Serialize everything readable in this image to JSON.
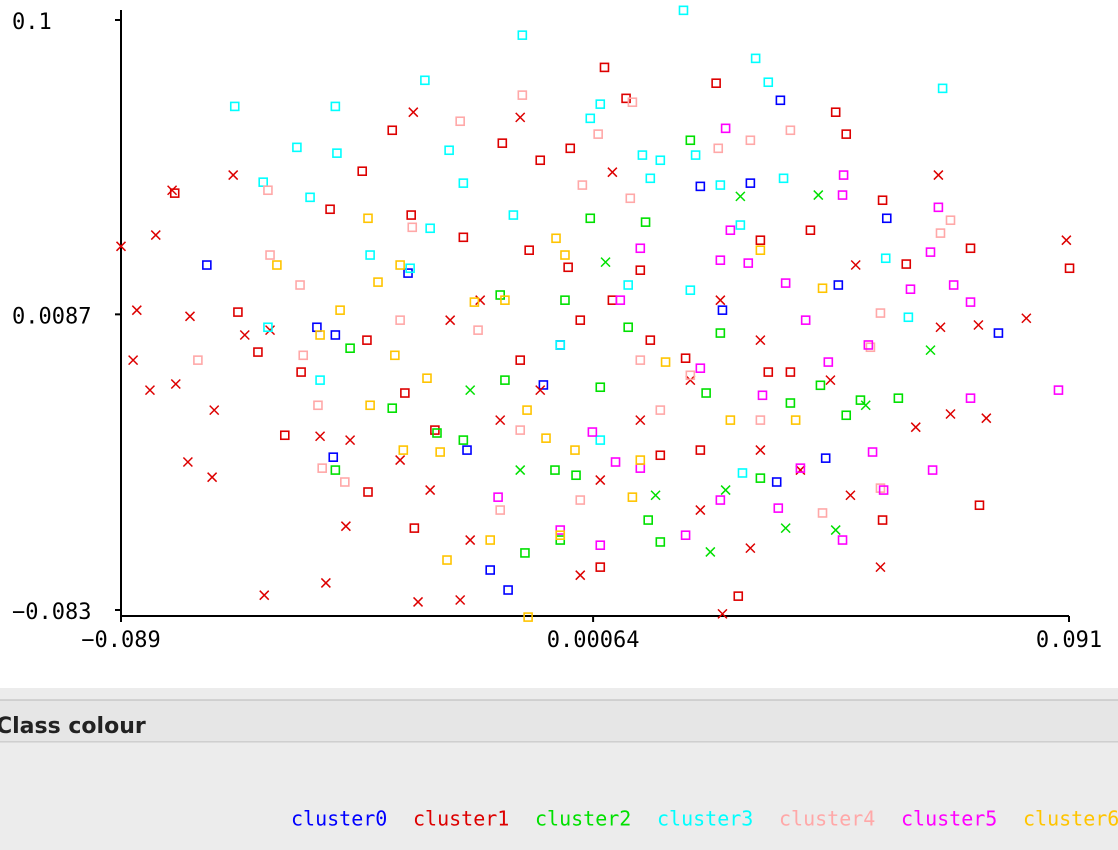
{
  "chart_data": {
    "type": "scatter",
    "xlim": [
      -0.089,
      0.091
    ],
    "ylim": [
      -0.083,
      0.1
    ],
    "xticks": [
      {
        "value": -0.089,
        "label": "−0.089"
      },
      0.00064,
      0.091
    ],
    "yticks": [
      {
        "value": -0.083,
        "label": "−0.083"
      },
      0.0087,
      0.1
    ],
    "legend_title": "Class colour",
    "series": [
      {
        "name": "cluster0",
        "color": "#0000ff",
        "marker": "square",
        "x": [
          -0.0727,
          -0.0345,
          -0.0518,
          -0.0483,
          -0.0056,
          -0.0487,
          -0.0189,
          -0.0155,
          0.0362,
          0.0564,
          0.0776,
          0.0472,
          0.0252,
          0.021,
          0.0305,
          0.0448,
          0.0355,
          -0.0088,
          -0.0233
        ],
        "y": [
          0.024,
          0.0215,
          0.0047,
          0.0023,
          -0.0008,
          -0.0356,
          -0.0706,
          -0.0768,
          0.0751,
          0.0385,
          0.0029,
          0.0178,
          0.01,
          0.0484,
          0.0494,
          -0.0359,
          -0.0433,
          -0.0132,
          -0.0334
        ]
      },
      {
        "name": "cluster1",
        "color": "#dd0000",
        "x": [
          0.0028,
          0.024,
          -0.0375,
          -0.0166,
          -0.0094,
          0.0487,
          0.0467,
          -0.0432,
          -0.0493,
          -0.0339,
          -0.024,
          -0.0668,
          -0.063,
          -0.0548,
          -0.0423,
          -0.0351,
          -0.0294,
          -0.0041,
          0.0043,
          0.0115,
          0.0182,
          0.0339,
          0.0381,
          0.0556,
          0.0723,
          0.0911,
          0.074,
          0.0556,
          0.0282,
          0.002,
          -0.0333,
          -0.0421,
          -0.0579,
          -0.0115,
          0.0096,
          0.021,
          0.0134,
          -0.0018,
          -0.0132,
          0.0324,
          0.0419,
          0.0601,
          -0.0788,
          -0.0037,
          0.0069,
          -0.089,
          -0.0824,
          -0.0677,
          -0.0793,
          -0.086,
          -0.0759,
          -0.0867,
          -0.0835,
          -0.0786,
          -0.0713,
          -0.0763,
          -0.0717,
          -0.0618,
          -0.0501,
          -0.0463,
          -0.0326,
          -0.0246,
          -0.0018,
          0.0252,
          0.0305,
          0.0552,
          0.0662,
          0.0905,
          0.0829,
          0.0738,
          0.0753,
          0.0685,
          0.0619,
          0.0495,
          0.04,
          -0.0335,
          -0.0132,
          0.0043,
          -0.0265,
          -0.0208,
          -0.017,
          -0.0094,
          0.002,
          0.0096,
          0.0191,
          0.0248,
          0.0324,
          0.0457,
          0.0505,
          0.0666,
          -0.0512,
          -0.0455,
          -0.0607,
          -0.0655,
          -0.0303,
          -0.0227,
          -0.036,
          0.021,
          0.0324
        ],
        "y": [
          0.0853,
          0.0804,
          0.0658,
          0.0618,
          0.0565,
          0.0646,
          0.0714,
          0.0531,
          0.0413,
          0.0395,
          0.0326,
          0.0094,
          -0.003,
          -0.0092,
          0.0007,
          -0.0157,
          -0.0272,
          0.0233,
          0.0131,
          0.0007,
          -0.0049,
          -0.0092,
          -0.0092,
          0.0441,
          0.0292,
          0.023,
          -0.0505,
          -0.0551,
          -0.0787,
          -0.0697,
          -0.0576,
          -0.0464,
          -0.0288,
          0.0286,
          0.0224,
          -0.0334,
          -0.035,
          0.0069,
          -0.0055,
          0.0317,
          0.0348,
          0.0243,
          0.0463,
          0.0602,
          0.0757,
          0.0298,
          0.0333,
          0.0519,
          0.0472,
          0.01,
          0.0081,
          -0.0055,
          -0.0148,
          -0.0129,
          -0.021,
          -0.0371,
          -0.0418,
          -0.0784,
          -0.0746,
          -0.057,
          -0.0805,
          -0.0799,
          -0.0722,
          -0.0842,
          -0.0638,
          -0.0697,
          0.0519,
          0.0317,
          0.0075,
          0.0054,
          -0.0235,
          -0.0222,
          -0.0263,
          -0.0474,
          -0.0396,
          0.0714,
          0.0698,
          0.0528,
          0.0069,
          0.0131,
          -0.0241,
          -0.0148,
          -0.0427,
          -0.0241,
          -0.0117,
          0.0131,
          0.0007,
          -0.0117,
          0.024,
          0.0047,
          -0.0291,
          -0.0303,
          0.0038,
          0.0023,
          -0.0458,
          -0.0613,
          -0.0365,
          -0.052,
          -0.0334
        ],
        "markers": [
          "square",
          "square",
          "square",
          "square",
          "square",
          "square",
          "square",
          "square",
          "square",
          "square",
          "square",
          "square",
          "square",
          "square",
          "square",
          "square",
          "square",
          "square",
          "square",
          "square",
          "square",
          "square",
          "square",
          "square",
          "square",
          "square",
          "square",
          "square",
          "square",
          "square",
          "square",
          "square",
          "square",
          "square",
          "square",
          "square",
          "square",
          "square",
          "square",
          "square",
          "square",
          "square",
          "square",
          "square",
          "square",
          "cross",
          "cross",
          "cross",
          "cross",
          "cross",
          "cross",
          "cross",
          "cross",
          "cross",
          "cross",
          "cross",
          "cross",
          "cross",
          "cross",
          "cross",
          "cross",
          "cross",
          "cross",
          "cross",
          "cross",
          "cross",
          "cross",
          "cross",
          "cross",
          "cross",
          "cross",
          "cross",
          "cross",
          "cross",
          "cross",
          "cross",
          "cross",
          "cross",
          "cross",
          "cross",
          "cross",
          "cross",
          "cross",
          "cross",
          "cross",
          "cross",
          "cross",
          "cross",
          "cross",
          "cross",
          "cross",
          "cross",
          "cross",
          "cross",
          "cross",
          "cross",
          "cross",
          "cross",
          "cross"
        ]
      },
      {
        "name": "cluster2",
        "color": "#00e000",
        "x": [
          0.0191,
          0.0106,
          0.0001,
          -0.017,
          -0.0455,
          -0.0483,
          -0.029,
          -0.024,
          -0.0066,
          -0.0026,
          -0.0123,
          -0.0056,
          0.0111,
          0.0134,
          0.002,
          0.0221,
          0.0324,
          0.0438,
          0.0586,
          0.0514,
          0.0487,
          0.0381,
          0.0248,
          0.0073,
          -0.0161,
          -0.0375,
          -0.0047,
          0.0434,
          0.0286,
          0.003,
          0.0229,
          0.0372,
          0.0467,
          0.0647,
          0.0125,
          0.0258,
          -0.0227,
          -0.0132,
          0.0524
        ],
        "y": [
          0.0627,
          0.0373,
          0.0385,
          0.0147,
          -0.0018,
          -0.0396,
          -0.0281,
          -0.0303,
          -0.0396,
          -0.0412,
          -0.0653,
          -0.0613,
          -0.0551,
          -0.0619,
          -0.0139,
          -0.0157,
          -0.0421,
          -0.0133,
          -0.0173,
          -0.0179,
          -0.0226,
          -0.0188,
          0.0029,
          0.0047,
          -0.0117,
          -0.0204,
          0.0131,
          0.0457,
          0.0453,
          0.0249,
          -0.065,
          -0.0576,
          -0.0582,
          -0.0024,
          -0.0474,
          -0.0458,
          -0.0148,
          -0.0396,
          -0.0195
        ],
        "markers": [
          "square",
          "square",
          "square",
          "square",
          "square",
          "square",
          "square",
          "square",
          "square",
          "square",
          "square",
          "square",
          "square",
          "square",
          "square",
          "square",
          "square",
          "square",
          "square",
          "square",
          "square",
          "square",
          "square",
          "square",
          "square",
          "square",
          "square",
          "cross",
          "cross",
          "cross",
          "cross",
          "cross",
          "cross",
          "cross",
          "cross",
          "cross",
          "cross",
          "cross",
          "cross"
        ]
      },
      {
        "name": "cluster3",
        "color": "#00ffff",
        "marker": "square",
        "x": [
          0.0178,
          -0.0128,
          -0.0313,
          -0.0674,
          -0.0483,
          -0.0556,
          -0.048,
          -0.062,
          -0.0531,
          0.0315,
          0.0339,
          0.067,
          -0.0267,
          0.0001,
          0.002,
          0.01,
          0.0134,
          0.0201,
          0.0368,
          0.0248,
          0.0115,
          -0.0145,
          -0.024,
          -0.0303,
          -0.0341,
          -0.0417,
          -0.0611,
          -0.0512,
          0.0605,
          0.0562,
          0.029,
          0.002,
          -0.0056,
          0.0191,
          0.0073,
          0.0286
        ],
        "y": [
          0.103,
          0.0953,
          0.0813,
          0.0732,
          0.0732,
          0.0605,
          0.0587,
          0.0497,
          0.045,
          0.0881,
          0.0807,
          0.0788,
          0.0596,
          0.0695,
          0.0739,
          0.0581,
          0.0565,
          0.0581,
          0.0509,
          0.0488,
          0.0509,
          0.0395,
          0.0494,
          0.0354,
          0.023,
          0.0271,
          0.0047,
          -0.0117,
          0.0078,
          0.0261,
          -0.0405,
          -0.0303,
          -0.0008,
          0.0162,
          0.0178,
          0.0364
        ]
      },
      {
        "name": "cluster4",
        "color": "#ffa8a8",
        "marker": "square",
        "x": [
          -0.0128,
          -0.0246,
          0.0016,
          0.0081,
          -0.0611,
          -0.0607,
          -0.055,
          -0.0744,
          -0.0544,
          -0.0516,
          -0.0465,
          -0.0508,
          -0.0014,
          0.0077,
          0.0244,
          0.0305,
          0.0381,
          0.0685,
          0.0666,
          0.0552,
          0.0533,
          0.0552,
          0.0442,
          0.0096,
          0.0191,
          -0.0212,
          -0.036,
          -0.0132,
          0.0134,
          0.0324,
          -0.0018,
          -0.017,
          -0.0337
        ],
        "y": [
          0.0767,
          0.0686,
          0.0646,
          0.0745,
          0.0472,
          0.0271,
          0.0178,
          -0.0055,
          -0.004,
          -0.0195,
          -0.0433,
          -0.039,
          0.0488,
          0.0447,
          0.0602,
          0.0627,
          0.0658,
          0.0379,
          0.0339,
          0.0091,
          -0.0015,
          -0.0452,
          -0.0529,
          -0.0055,
          -0.0102,
          0.0038,
          0.0069,
          -0.0272,
          -0.021,
          -0.0241,
          -0.0489,
          -0.052,
          0.0357
        ]
      },
      {
        "name": "cluster5",
        "color": "#ff00ff",
        "marker": "square",
        "x": [
          0.0258,
          0.0482,
          0.048,
          0.0662,
          0.0647,
          0.0691,
          0.0723,
          0.0609,
          0.089,
          0.0723,
          0.0651,
          0.0558,
          0.048,
          0.0537,
          0.0529,
          0.0453,
          0.04,
          0.0358,
          0.0267,
          0.0248,
          0.0301,
          0.0372,
          0.041,
          0.0096,
          0.0058,
          0.021,
          0.0328,
          0.0005,
          0.0049,
          0.0096,
          -0.0056,
          0.002,
          -0.0174,
          0.0182,
          0.0248
        ],
        "y": [
          0.0664,
          0.0519,
          0.0457,
          0.0419,
          0.028,
          0.0178,
          0.0125,
          0.0165,
          -0.0148,
          -0.0173,
          -0.0396,
          -0.0458,
          -0.0613,
          -0.034,
          -0.0008,
          -0.0061,
          -0.039,
          -0.0514,
          0.0348,
          0.0255,
          0.0246,
          0.0184,
          0.0069,
          0.0292,
          0.0131,
          -0.008,
          -0.0164,
          -0.0278,
          -0.0371,
          -0.039,
          -0.0582,
          -0.0629,
          -0.048,
          -0.0598,
          -0.0489
        ]
      },
      {
        "name": "cluster6",
        "color": "#ffc400",
        "marker": "square",
        "x": [
          -0.0594,
          -0.0421,
          -0.036,
          -0.0402,
          -0.0474,
          -0.0512,
          -0.037,
          -0.0309,
          -0.0417,
          -0.0354,
          -0.0284,
          -0.0189,
          -0.0271,
          -0.0117,
          -0.0056,
          0.0081,
          -0.0083,
          -0.0119,
          -0.0219,
          -0.0161,
          -0.0064,
          -0.0047,
          0.0144,
          0.0267,
          0.0324,
          0.0391,
          0.0442,
          -0.0028,
          0.0096
        ],
        "y": [
          0.024,
          0.0385,
          0.024,
          0.0187,
          0.01,
          0.0023,
          -0.004,
          -0.0111,
          -0.0195,
          -0.0334,
          -0.034,
          -0.0613,
          -0.0675,
          -0.0852,
          -0.0598,
          -0.048,
          -0.0297,
          -0.021,
          0.0125,
          0.0131,
          0.0323,
          0.0271,
          -0.0061,
          -0.0241,
          0.0286,
          -0.0241,
          0.0168,
          -0.0334,
          -0.0365
        ]
      }
    ]
  }
}
